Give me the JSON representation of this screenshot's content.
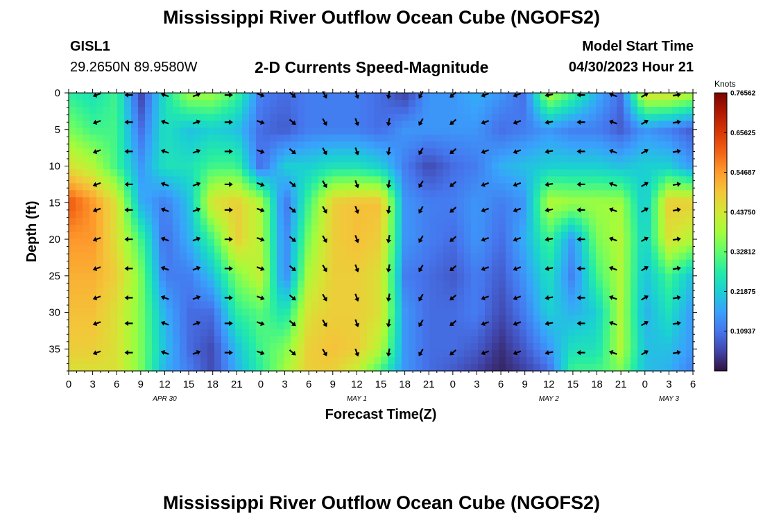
{
  "page": {
    "title_top": "Mississippi River Outflow Ocean Cube (NGOFS2)",
    "title_bottom": "Mississippi River Outflow Ocean Cube (NGOFS2)",
    "station": "GISL1",
    "coords": "29.2650N  89.9580W",
    "subtitle": "2-D Currents Speed-Magnitude",
    "model_start_label": "Model Start Time",
    "model_start_value": "04/30/2023 Hour 21"
  },
  "colors": {
    "arrow": "#000000",
    "colormap": [
      "#30123b",
      "#4145ab",
      "#4675ed",
      "#39a2fc",
      "#1bcfd4",
      "#24eca6",
      "#61fc6c",
      "#a4fc3b",
      "#d1e834",
      "#f3c63a",
      "#fe9b2d",
      "#f36315",
      "#d93806",
      "#b11901",
      "#7a0402"
    ]
  },
  "chart_data": {
    "type": "heatmap",
    "title": "2-D Currents Speed-Magnitude",
    "xlabel": "Forecast Time(Z)",
    "ylabel": "Depth (ft)",
    "x_tick_labels": [
      "0",
      "3",
      "6",
      "9",
      "12",
      "15",
      "18",
      "21",
      "0",
      "3",
      "6",
      "9",
      "12",
      "15",
      "18",
      "21",
      "0",
      "3",
      "6",
      "9",
      "12",
      "15",
      "18",
      "21",
      "0",
      "3",
      "6"
    ],
    "date_labels": [
      {
        "label": "APR 30",
        "hour": 12
      },
      {
        "label": "MAY 1",
        "hour": 36
      },
      {
        "label": "MAY 2",
        "hour": 60
      },
      {
        "label": "MAY 3",
        "hour": 75
      }
    ],
    "xlim": [
      0,
      78
    ],
    "ylim": [
      0,
      38
    ],
    "y_ticks": [
      0,
      5,
      10,
      15,
      20,
      25,
      30,
      35
    ],
    "colorbar": {
      "label": "Knots",
      "range": [
        0,
        0.765625
      ],
      "tick_values": [
        0.10937,
        0.21875,
        0.32812,
        0.4375,
        0.54687,
        0.65625,
        0.76562
      ],
      "tick_labels": [
        "0.10937",
        "0.21875",
        "0.32812",
        "0.43750",
        "0.54687",
        "0.65625",
        "0.76562"
      ]
    },
    "x_hours": [
      0,
      3,
      6,
      9,
      12,
      15,
      18,
      21,
      24,
      27,
      30,
      33,
      36,
      39,
      42,
      45,
      48,
      51,
      54,
      57,
      60,
      63,
      66,
      69,
      72,
      75,
      78
    ],
    "depths_ft": [
      0,
      5,
      10,
      15,
      20,
      25,
      30,
      35,
      38
    ],
    "speed_knots": [
      [
        0.28,
        0.25,
        0.3,
        0.05,
        0.25,
        0.38,
        0.38,
        0.3,
        0.12,
        0.1,
        0.12,
        0.12,
        0.12,
        0.1,
        0.05,
        0.15,
        0.15,
        0.18,
        0.15,
        0.1,
        0.4,
        0.3,
        0.18,
        0.1,
        0.45,
        0.45,
        0.4
      ],
      [
        0.35,
        0.3,
        0.3,
        0.1,
        0.25,
        0.2,
        0.22,
        0.2,
        0.1,
        0.08,
        0.12,
        0.12,
        0.12,
        0.1,
        0.15,
        0.15,
        0.15,
        0.15,
        0.1,
        0.12,
        0.15,
        0.12,
        0.12,
        0.08,
        0.15,
        0.12,
        0.08
      ],
      [
        0.45,
        0.4,
        0.3,
        0.15,
        0.25,
        0.25,
        0.3,
        0.3,
        0.1,
        0.22,
        0.22,
        0.25,
        0.25,
        0.22,
        0.12,
        0.06,
        0.1,
        0.12,
        0.18,
        0.2,
        0.22,
        0.22,
        0.22,
        0.2,
        0.22,
        0.22,
        0.15
      ],
      [
        0.62,
        0.55,
        0.45,
        0.18,
        0.12,
        0.2,
        0.45,
        0.48,
        0.4,
        0.1,
        0.3,
        0.48,
        0.5,
        0.5,
        0.15,
        0.12,
        0.12,
        0.15,
        0.12,
        0.15,
        0.4,
        0.38,
        0.38,
        0.38,
        0.2,
        0.48,
        0.48
      ],
      [
        0.55,
        0.55,
        0.45,
        0.3,
        0.1,
        0.18,
        0.3,
        0.48,
        0.4,
        0.12,
        0.35,
        0.48,
        0.5,
        0.48,
        0.15,
        0.12,
        0.1,
        0.15,
        0.1,
        0.18,
        0.3,
        0.15,
        0.35,
        0.4,
        0.22,
        0.45,
        0.4
      ],
      [
        0.52,
        0.52,
        0.48,
        0.35,
        0.12,
        0.12,
        0.2,
        0.35,
        0.42,
        0.12,
        0.4,
        0.48,
        0.48,
        0.45,
        0.12,
        0.1,
        0.08,
        0.12,
        0.08,
        0.15,
        0.25,
        0.12,
        0.3,
        0.4,
        0.2,
        0.3,
        0.2
      ],
      [
        0.5,
        0.5,
        0.45,
        0.35,
        0.18,
        0.1,
        0.1,
        0.28,
        0.32,
        0.25,
        0.45,
        0.48,
        0.48,
        0.45,
        0.15,
        0.1,
        0.1,
        0.12,
        0.06,
        0.12,
        0.22,
        0.18,
        0.22,
        0.4,
        0.18,
        0.25,
        0.15
      ],
      [
        0.48,
        0.48,
        0.45,
        0.35,
        0.2,
        0.1,
        0.06,
        0.2,
        0.3,
        0.35,
        0.48,
        0.5,
        0.48,
        0.4,
        0.15,
        0.1,
        0.1,
        0.08,
        0.03,
        0.08,
        0.15,
        0.25,
        0.25,
        0.4,
        0.2,
        0.2,
        0.15
      ],
      [
        0.45,
        0.45,
        0.45,
        0.35,
        0.18,
        0.12,
        0.06,
        0.18,
        0.28,
        0.38,
        0.48,
        0.48,
        0.42,
        0.3,
        0.15,
        0.1,
        0.08,
        0.05,
        0.02,
        0.05,
        0.1,
        0.3,
        0.3,
        0.35,
        0.2,
        0.18,
        0.12
      ]
    ],
    "arrows": {
      "note": "current direction at each sampled point, degrees counter-clockwise from east",
      "x_hours": [
        3.5,
        7.5,
        12,
        16,
        20,
        24,
        28,
        32,
        36,
        40,
        44,
        48,
        52,
        56,
        60,
        64,
        68,
        72,
        76
      ],
      "depths_ft": [
        0,
        4,
        8,
        12.5,
        16,
        20,
        24,
        28,
        31.5,
        35.5
      ],
      "angle_deg": [
        [
          200,
          180,
          160,
          20,
          0,
          340,
          320,
          300,
          290,
          260,
          240,
          220,
          200,
          200,
          190,
          180,
          160,
          30,
          10
        ],
        [
          200,
          180,
          160,
          20,
          0,
          340,
          320,
          300,
          290,
          260,
          240,
          220,
          200,
          200,
          190,
          180,
          160,
          30,
          10
        ],
        [
          200,
          180,
          160,
          20,
          0,
          340,
          320,
          300,
          290,
          260,
          240,
          220,
          200,
          200,
          190,
          180,
          160,
          30,
          10
        ],
        [
          200,
          180,
          160,
          20,
          0,
          340,
          320,
          300,
          290,
          260,
          240,
          220,
          200,
          200,
          190,
          180,
          160,
          30,
          10
        ],
        [
          200,
          180,
          160,
          20,
          0,
          340,
          320,
          300,
          290,
          260,
          240,
          220,
          200,
          200,
          190,
          180,
          160,
          30,
          10
        ],
        [
          200,
          180,
          160,
          20,
          0,
          340,
          320,
          300,
          290,
          260,
          240,
          220,
          200,
          200,
          190,
          180,
          160,
          30,
          10
        ],
        [
          200,
          180,
          160,
          20,
          0,
          340,
          320,
          300,
          290,
          260,
          240,
          220,
          200,
          200,
          190,
          180,
          160,
          30,
          10
        ],
        [
          200,
          180,
          160,
          20,
          0,
          340,
          320,
          300,
          290,
          260,
          240,
          220,
          200,
          200,
          190,
          180,
          160,
          30,
          10
        ],
        [
          200,
          180,
          160,
          20,
          0,
          340,
          320,
          300,
          290,
          260,
          240,
          220,
          200,
          200,
          190,
          180,
          160,
          30,
          10
        ],
        [
          200,
          180,
          160,
          20,
          0,
          340,
          320,
          300,
          290,
          260,
          240,
          220,
          200,
          200,
          190,
          180,
          160,
          30,
          10
        ]
      ]
    }
  }
}
